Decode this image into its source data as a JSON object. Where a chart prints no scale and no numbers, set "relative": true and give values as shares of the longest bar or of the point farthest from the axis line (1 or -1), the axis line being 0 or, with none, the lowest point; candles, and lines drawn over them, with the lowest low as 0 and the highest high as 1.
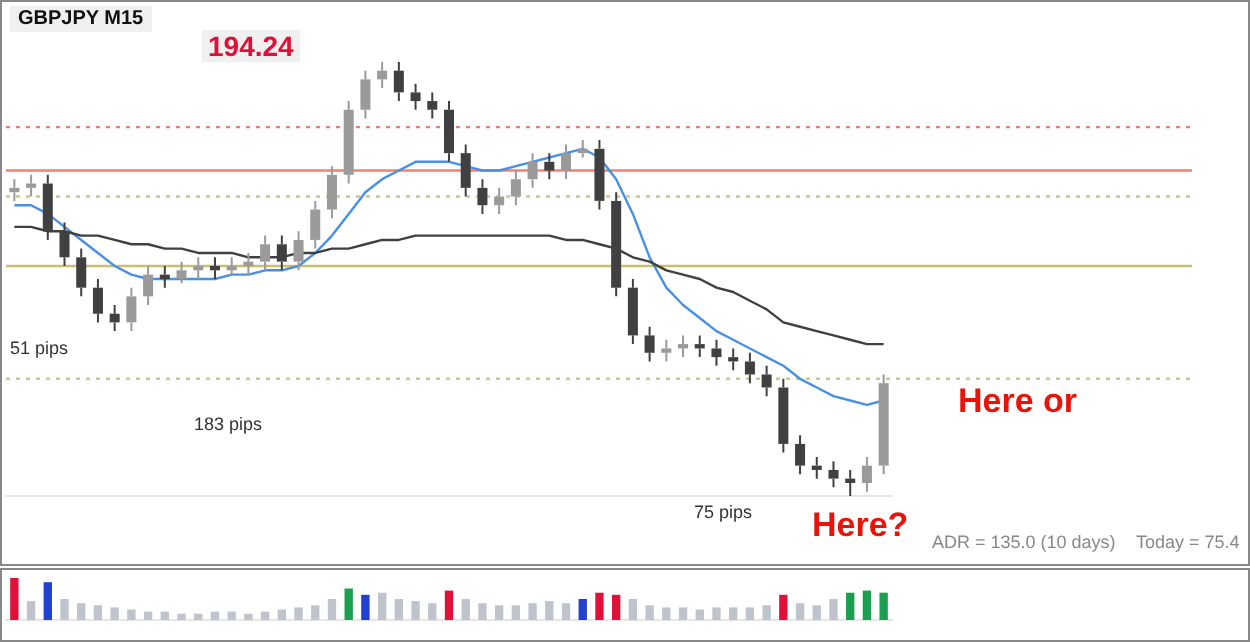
{
  "chart_data": [
    {
      "type": "candlestick",
      "title": "GBPJPY  M15",
      "relative": true,
      "legend": false,
      "categories": [
        null,
        null,
        null,
        null,
        null,
        null,
        null,
        null,
        null,
        null,
        null,
        null,
        null,
        null,
        null,
        null,
        null,
        null,
        null,
        null,
        null,
        null,
        null,
        null,
        null,
        null,
        null,
        null,
        null,
        null,
        null,
        null,
        null,
        null,
        null,
        null,
        null,
        null,
        null,
        null,
        null,
        null,
        null,
        null,
        null,
        null,
        null,
        null,
        null,
        null,
        null,
        null,
        null
      ],
      "ohlc": [
        [
          0.7,
          0.73,
          0.68,
          0.71
        ],
        [
          0.71,
          0.74,
          0.69,
          0.72
        ],
        [
          0.72,
          0.74,
          0.59,
          0.61
        ],
        [
          0.61,
          0.63,
          0.53,
          0.55
        ],
        [
          0.55,
          0.57,
          0.46,
          0.48
        ],
        [
          0.48,
          0.5,
          0.4,
          0.42
        ],
        [
          0.42,
          0.44,
          0.38,
          0.4
        ],
        [
          0.4,
          0.48,
          0.38,
          0.46
        ],
        [
          0.46,
          0.53,
          0.44,
          0.51
        ],
        [
          0.51,
          0.53,
          0.48,
          0.5
        ],
        [
          0.5,
          0.54,
          0.49,
          0.52
        ],
        [
          0.52,
          0.55,
          0.5,
          0.53
        ],
        [
          0.53,
          0.55,
          0.5,
          0.52
        ],
        [
          0.52,
          0.55,
          0.51,
          0.53
        ],
        [
          0.53,
          0.56,
          0.51,
          0.54
        ],
        [
          0.54,
          0.6,
          0.52,
          0.58
        ],
        [
          0.58,
          0.6,
          0.52,
          0.54
        ],
        [
          0.54,
          0.61,
          0.52,
          0.59
        ],
        [
          0.59,
          0.68,
          0.57,
          0.66
        ],
        [
          0.66,
          0.76,
          0.64,
          0.74
        ],
        [
          0.74,
          0.91,
          0.72,
          0.89
        ],
        [
          0.89,
          0.98,
          0.87,
          0.96
        ],
        [
          0.96,
          1.0,
          0.94,
          0.98
        ],
        [
          0.98,
          1.0,
          0.91,
          0.93
        ],
        [
          0.93,
          0.95,
          0.89,
          0.91
        ],
        [
          0.91,
          0.93,
          0.87,
          0.89
        ],
        [
          0.89,
          0.91,
          0.77,
          0.79
        ],
        [
          0.79,
          0.81,
          0.69,
          0.71
        ],
        [
          0.71,
          0.73,
          0.65,
          0.67
        ],
        [
          0.67,
          0.71,
          0.65,
          0.69
        ],
        [
          0.69,
          0.75,
          0.67,
          0.73
        ],
        [
          0.73,
          0.79,
          0.71,
          0.77
        ],
        [
          0.77,
          0.79,
          0.73,
          0.75
        ],
        [
          0.75,
          0.81,
          0.73,
          0.79
        ],
        [
          0.79,
          0.82,
          0.78,
          0.8
        ],
        [
          0.8,
          0.82,
          0.66,
          0.68
        ],
        [
          0.68,
          0.7,
          0.46,
          0.48
        ],
        [
          0.48,
          0.5,
          0.35,
          0.37
        ],
        [
          0.37,
          0.39,
          0.31,
          0.33
        ],
        [
          0.33,
          0.36,
          0.31,
          0.34
        ],
        [
          0.34,
          0.37,
          0.32,
          0.35
        ],
        [
          0.35,
          0.37,
          0.32,
          0.34
        ],
        [
          0.34,
          0.36,
          0.3,
          0.32
        ],
        [
          0.32,
          0.34,
          0.29,
          0.31
        ],
        [
          0.31,
          0.33,
          0.26,
          0.28
        ],
        [
          0.28,
          0.3,
          0.23,
          0.25
        ],
        [
          0.25,
          0.27,
          0.1,
          0.12
        ],
        [
          0.12,
          0.14,
          0.05,
          0.07
        ],
        [
          0.07,
          0.09,
          0.04,
          0.06
        ],
        [
          0.06,
          0.08,
          0.02,
          0.04
        ],
        [
          0.04,
          0.06,
          0.0,
          0.03
        ],
        [
          0.03,
          0.09,
          0.01,
          0.07
        ],
        [
          0.07,
          0.28,
          0.05,
          0.26
        ]
      ],
      "colors": [
        "#9a9a9a",
        "#9a9a9a",
        "#404040",
        "#404040",
        "#404040",
        "#404040",
        "#404040",
        "#9a9a9a",
        "#9a9a9a",
        "#404040",
        "#9a9a9a",
        "#9a9a9a",
        "#404040",
        "#9a9a9a",
        "#9a9a9a",
        "#9a9a9a",
        "#404040",
        "#9a9a9a",
        "#9a9a9a",
        "#9a9a9a",
        "#9a9a9a",
        "#9a9a9a",
        "#9a9a9a",
        "#404040",
        "#404040",
        "#404040",
        "#404040",
        "#404040",
        "#404040",
        "#9a9a9a",
        "#9a9a9a",
        "#9a9a9a",
        "#404040",
        "#9a9a9a",
        "#9a9a9a",
        "#404040",
        "#404040",
        "#404040",
        "#404040",
        "#9a9a9a",
        "#9a9a9a",
        "#404040",
        "#404040",
        "#404040",
        "#404040",
        "#404040",
        "#404040",
        "#404040",
        "#404040",
        "#404040",
        "#404040",
        "#9a9a9a",
        "#9a9a9a"
      ],
      "series": [
        {
          "type": "line",
          "color": "#404040",
          "values": [
            0.62,
            0.62,
            0.61,
            0.61,
            0.6,
            0.6,
            0.59,
            0.58,
            0.58,
            0.57,
            0.57,
            0.56,
            0.56,
            0.56,
            0.55,
            0.55,
            0.55,
            0.56,
            0.56,
            0.57,
            0.57,
            0.58,
            0.59,
            0.59,
            0.6,
            0.6,
            0.6,
            0.6,
            0.6,
            0.6,
            0.6,
            0.6,
            0.6,
            0.59,
            0.59,
            0.58,
            0.57,
            0.55,
            0.54,
            0.52,
            0.51,
            0.5,
            0.48,
            0.47,
            0.45,
            0.43,
            0.4,
            0.39,
            0.38,
            0.37,
            0.36,
            0.35,
            0.35
          ]
        },
        {
          "type": "line",
          "color": "#4a90e2",
          "values": [
            0.67,
            0.67,
            0.65,
            0.62,
            0.59,
            0.56,
            0.53,
            0.51,
            0.5,
            0.5,
            0.5,
            0.5,
            0.5,
            0.51,
            0.51,
            0.52,
            0.52,
            0.53,
            0.56,
            0.6,
            0.65,
            0.7,
            0.73,
            0.75,
            0.77,
            0.77,
            0.77,
            0.76,
            0.75,
            0.75,
            0.76,
            0.77,
            0.78,
            0.79,
            0.8,
            0.78,
            0.73,
            0.65,
            0.55,
            0.48,
            0.44,
            0.41,
            0.38,
            0.36,
            0.34,
            0.32,
            0.3,
            0.27,
            0.25,
            0.23,
            0.22,
            0.21,
            0.22
          ]
        }
      ],
      "ref_lines": [
        {
          "axis": "y",
          "value": 0.85,
          "color": "#e8807a",
          "line_style": "dotted"
        },
        {
          "axis": "y",
          "value": 0.75,
          "color": "#f08070",
          "line_style": "solid"
        },
        {
          "axis": "y",
          "value": 0.69,
          "color": "#c8c890",
          "line_style": "dotted"
        },
        {
          "axis": "y",
          "value": 0.53,
          "color": "#c8c070",
          "line_style": "solid"
        },
        {
          "axis": "y",
          "value": 0.27,
          "color": "#c8c890",
          "line_style": "dotted"
        }
      ],
      "annotations": [
        "194.24",
        "51 pips",
        "183 pips",
        "75 pips",
        "Here or",
        "Here?",
        "ADR = 135.0  (10 days)",
        "Today = 75.4"
      ]
    },
    {
      "type": "bar",
      "relative": true,
      "legend": false,
      "categories": [
        null,
        null,
        null,
        null,
        null,
        null,
        null,
        null,
        null,
        null,
        null,
        null,
        null,
        null,
        null,
        null,
        null,
        null,
        null,
        null,
        null,
        null,
        null,
        null,
        null,
        null,
        null,
        null,
        null,
        null,
        null,
        null,
        null,
        null,
        null,
        null,
        null,
        null,
        null,
        null,
        null,
        null,
        null,
        null,
        null,
        null,
        null,
        null,
        null,
        null,
        null,
        null,
        null
      ],
      "values": [
        1.0,
        0.45,
        0.9,
        0.5,
        0.4,
        0.35,
        0.3,
        0.25,
        0.2,
        0.2,
        0.15,
        0.15,
        0.2,
        0.2,
        0.15,
        0.2,
        0.25,
        0.3,
        0.35,
        0.5,
        0.75,
        0.6,
        0.65,
        0.5,
        0.45,
        0.4,
        0.7,
        0.5,
        0.4,
        0.35,
        0.35,
        0.4,
        0.45,
        0.4,
        0.5,
        0.65,
        0.6,
        0.5,
        0.35,
        0.3,
        0.3,
        0.25,
        0.3,
        0.3,
        0.3,
        0.35,
        0.6,
        0.4,
        0.35,
        0.5,
        0.65,
        0.7,
        0.65
      ],
      "colors": [
        "#e0103a",
        "#bfc4cc",
        "#2040d0",
        "#bfc4cc",
        "#bfc4cc",
        "#bfc4cc",
        "#bfc4cc",
        "#bfc4cc",
        "#bfc4cc",
        "#bfc4cc",
        "#bfc4cc",
        "#bfc4cc",
        "#bfc4cc",
        "#bfc4cc",
        "#bfc4cc",
        "#bfc4cc",
        "#bfc4cc",
        "#bfc4cc",
        "#bfc4cc",
        "#bfc4cc",
        "#1aa050",
        "#2040d0",
        "#bfc4cc",
        "#bfc4cc",
        "#bfc4cc",
        "#bfc4cc",
        "#e0103a",
        "#bfc4cc",
        "#bfc4cc",
        "#bfc4cc",
        "#bfc4cc",
        "#bfc4cc",
        "#bfc4cc",
        "#bfc4cc",
        "#2040d0",
        "#e0103a",
        "#e0103a",
        "#bfc4cc",
        "#bfc4cc",
        "#bfc4cc",
        "#bfc4cc",
        "#bfc4cc",
        "#bfc4cc",
        "#bfc4cc",
        "#bfc4cc",
        "#bfc4cc",
        "#e0103a",
        "#bfc4cc",
        "#bfc4cc",
        "#bfc4cc",
        "#1aa050",
        "#1aa050",
        "#1aa050"
      ]
    }
  ]
}
